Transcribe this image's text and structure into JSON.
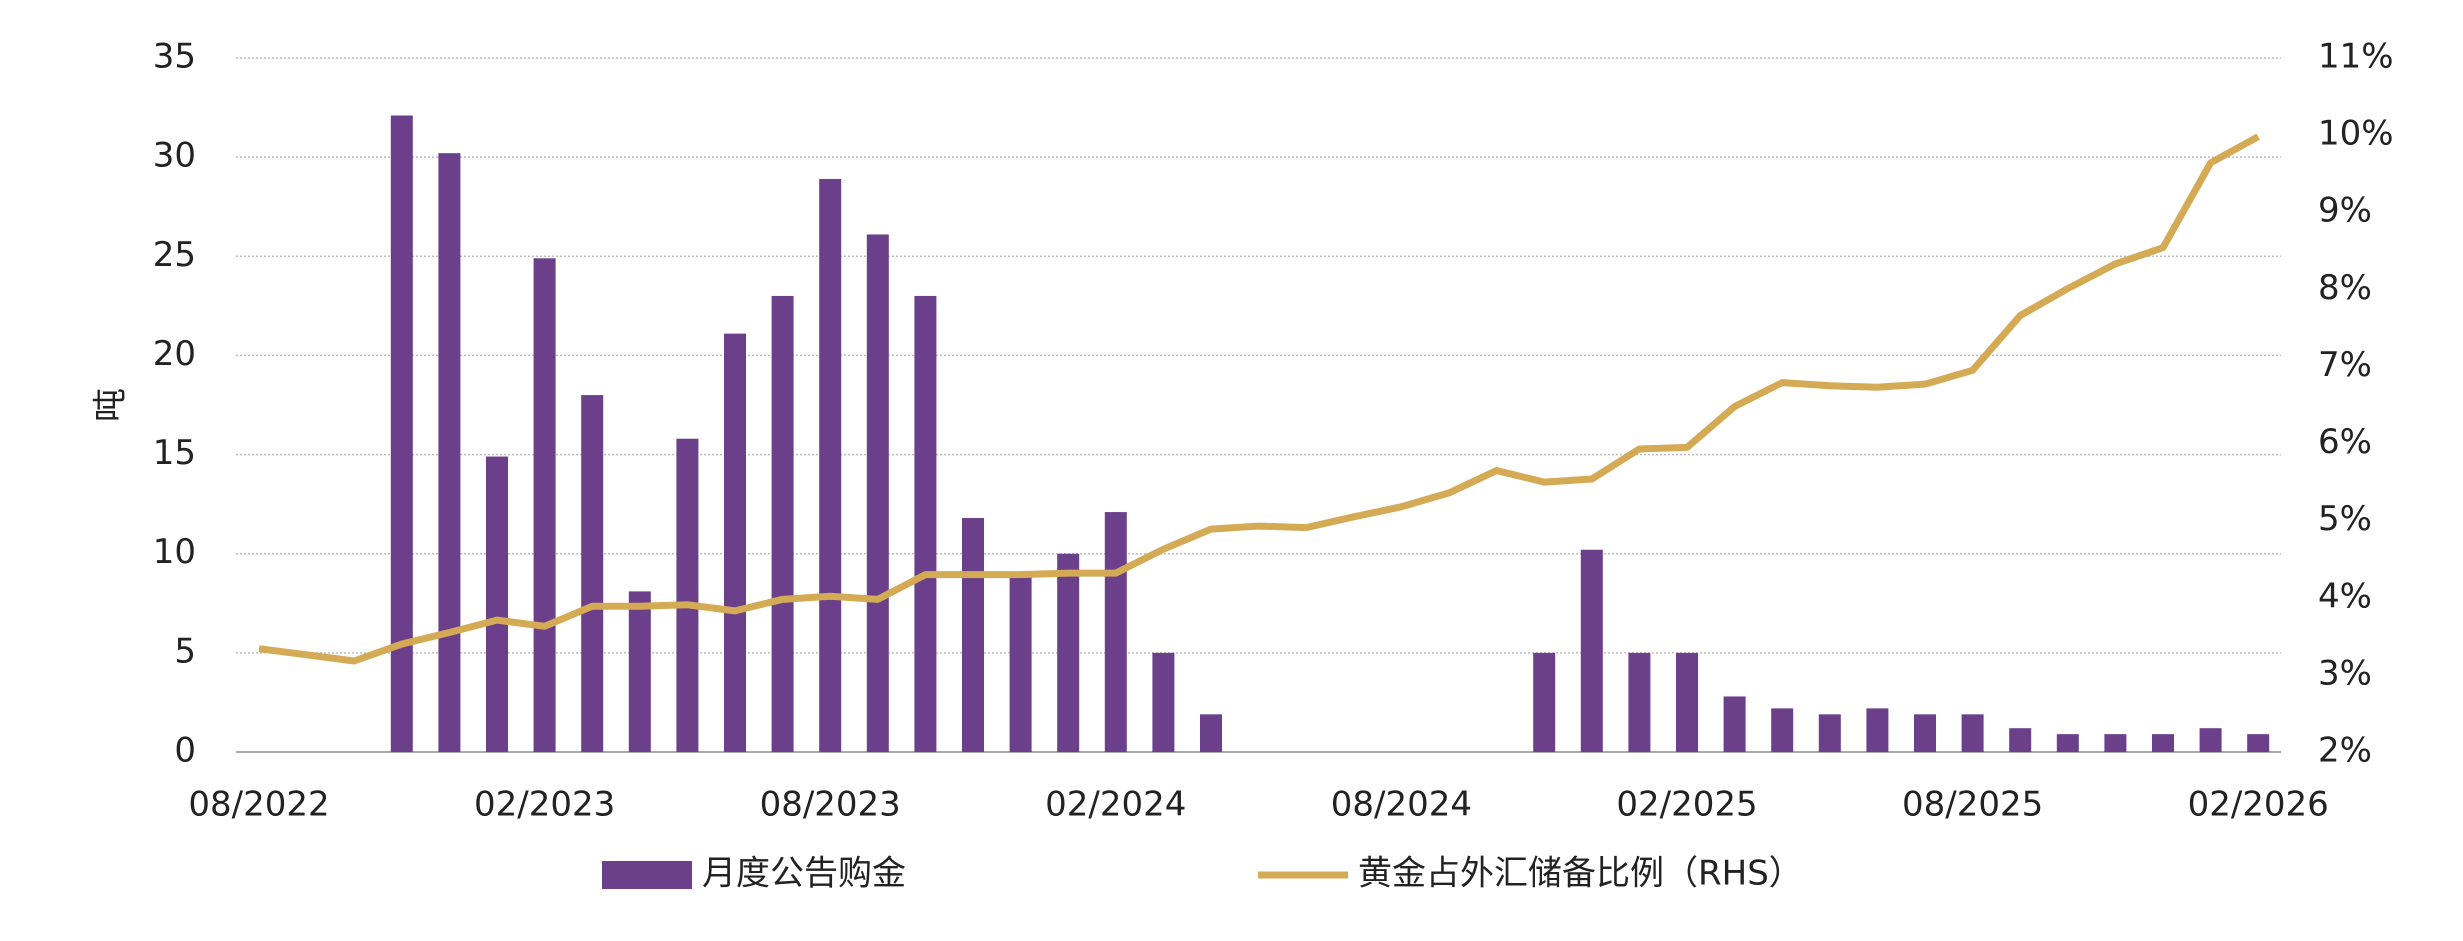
{
  "chart_data": {
    "type": "bar",
    "y_label": "吨",
    "categories": [
      "08/2022",
      null,
      null,
      null,
      null,
      null,
      "02/2023",
      null,
      null,
      null,
      null,
      null,
      "08/2023",
      null,
      null,
      null,
      null,
      null,
      "02/2024",
      null,
      null,
      null,
      null,
      null,
      "08/2024",
      null,
      null,
      null,
      null,
      null,
      "02/2025",
      null,
      null,
      null,
      null,
      null,
      "08/2025",
      null,
      null,
      null,
      null,
      null,
      "02/2026"
    ],
    "series": [
      {
        "name": "月度公告购金",
        "color": "#6b3f8a",
        "type": "bar",
        "values": [
          null,
          null,
          null,
          32.1,
          30.2,
          14.9,
          24.9,
          18,
          8.1,
          15.8,
          21.1,
          23,
          28.9,
          26.1,
          23,
          11.8,
          8.9,
          10,
          12.1,
          5,
          1.9,
          null,
          null,
          null,
          null,
          null,
          null,
          5,
          10.2,
          5,
          5,
          2.8,
          2.2,
          1.9,
          2.2,
          1.9,
          1.9,
          1.2,
          0.9,
          0.9,
          0.9,
          1.2,
          0.9
        ]
      },
      {
        "name": "黄金占外汇储备比例（RHS）",
        "color": "#d4aa55",
        "type": "line",
        "axis": "y2",
        "values": [
          3.34,
          3.26,
          3.18,
          3.4,
          3.55,
          3.71,
          3.63,
          3.89,
          3.89,
          3.91,
          3.83,
          3.98,
          4.02,
          3.98,
          4.3,
          4.3,
          4.3,
          4.32,
          4.32,
          4.63,
          4.89,
          4.93,
          4.91,
          5.05,
          5.18,
          5.36,
          5.65,
          5.5,
          5.54,
          5.93,
          5.95,
          6.48,
          6.79,
          6.75,
          6.73,
          6.77,
          6.95,
          7.66,
          8.01,
          8.33,
          8.54,
          9.64,
          9.98
        ]
      }
    ],
    "ylim": [
      0,
      35
    ],
    "yticks": [
      0,
      5,
      10,
      15,
      20,
      25,
      30,
      35
    ],
    "y2lim": [
      2,
      11
    ],
    "y2ticks": [
      {
        "value": 2,
        "label": "2%"
      },
      {
        "value": 3,
        "label": "3%"
      },
      {
        "value": 4,
        "label": "4%"
      },
      {
        "value": 5,
        "label": "5%"
      },
      {
        "value": 6,
        "label": "6%"
      },
      {
        "value": 7,
        "label": "7%"
      },
      {
        "value": 8,
        "label": "8%"
      },
      {
        "value": 9,
        "label": "9%"
      },
      {
        "value": 10,
        "label": "10%"
      },
      {
        "value": 11,
        "label": "11%"
      }
    ],
    "grid": true,
    "legend": "bottom"
  }
}
